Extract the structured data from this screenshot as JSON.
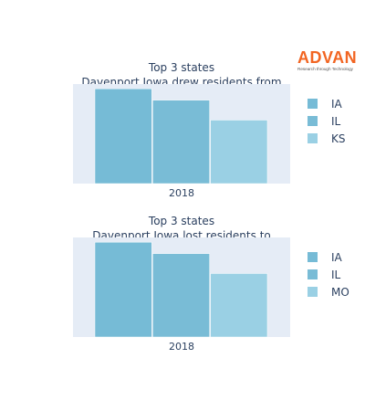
{
  "logo": {
    "text": "ADVAN",
    "tagline": "Research through Technology",
    "color": "#f26522"
  },
  "chart_data": [
    {
      "type": "bar",
      "title_lines": [
        "Top 3 states",
        "Davenport Iowa drew residents from"
      ],
      "categories": [
        "2018"
      ],
      "series": [
        {
          "name": "IA",
          "values": [
            100
          ],
          "color": "#76bbd6"
        },
        {
          "name": "IL",
          "values": [
            88
          ],
          "color": "#79bcd6"
        },
        {
          "name": "KS",
          "values": [
            67
          ],
          "color": "#9ad0e4"
        }
      ],
      "ylim": [
        0,
        105
      ],
      "grid": false,
      "legend": "right",
      "plot_bg": "#e5ecf6"
    },
    {
      "type": "bar",
      "title_lines": [
        "Top 3 states",
        "Davenport Iowa lost residents to"
      ],
      "categories": [
        "2018"
      ],
      "series": [
        {
          "name": "IA",
          "values": [
            100
          ],
          "color": "#76bbd6"
        },
        {
          "name": "IL",
          "values": [
            88
          ],
          "color": "#79bcd6"
        },
        {
          "name": "MO",
          "values": [
            67
          ],
          "color": "#9ad0e4"
        }
      ],
      "ylim": [
        0,
        105
      ],
      "grid": false,
      "legend": "right",
      "plot_bg": "#e5ecf6"
    }
  ]
}
